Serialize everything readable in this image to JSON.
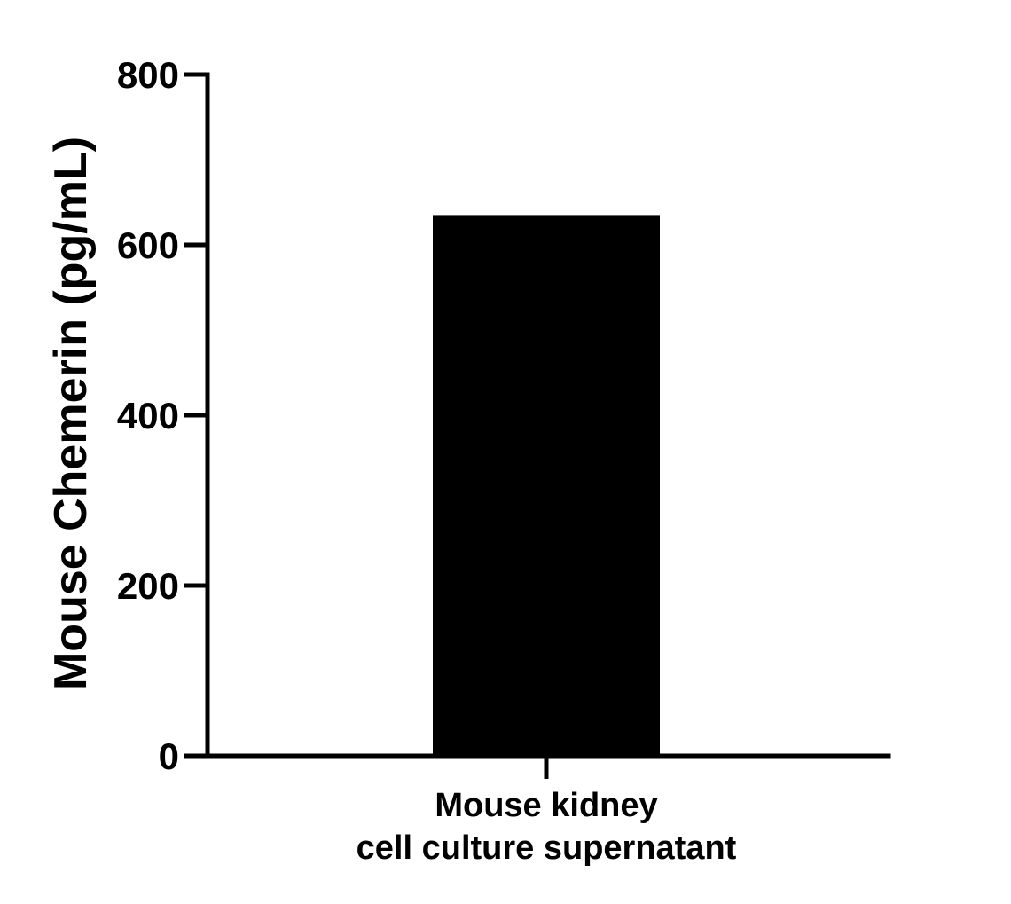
{
  "chart_data": {
    "type": "bar",
    "categories": [
      "Mouse kidney\ncell culture supernatant"
    ],
    "values": [
      635
    ],
    "title": "",
    "xlabel": "",
    "ylabel": "Mouse Chemerin (pg/mL)",
    "ylim": [
      0,
      800
    ],
    "yticks": [
      0,
      200,
      400,
      600,
      800
    ],
    "ytick_labels": [
      "0",
      "200",
      "400",
      "600",
      "800"
    ],
    "grid": false,
    "legend": "none",
    "colors": {
      "bar": "#000000",
      "axis": "#000000",
      "text": "#000000",
      "background": "#ffffff"
    }
  }
}
